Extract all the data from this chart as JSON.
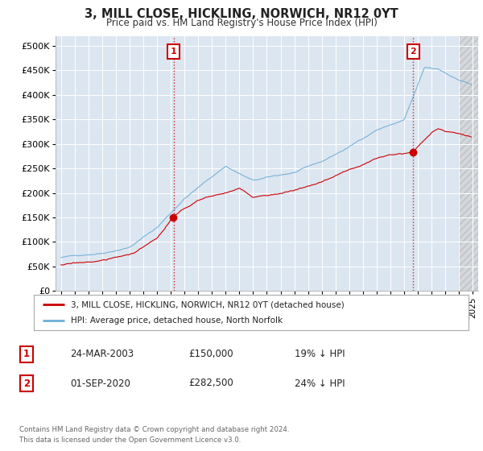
{
  "title_line1": "3, MILL CLOSE, HICKLING, NORWICH, NR12 0YT",
  "subtitle": "Price paid vs. HM Land Registry's House Price Index (HPI)",
  "ytick_values": [
    0,
    50000,
    100000,
    150000,
    200000,
    250000,
    300000,
    350000,
    400000,
    450000,
    500000
  ],
  "ylim": [
    0,
    520000
  ],
  "xlim_start": 1994.6,
  "xlim_end": 2025.4,
  "sale1_x": 2003.2,
  "sale1_price": 150000,
  "sale2_x": 2020.67,
  "sale2_price": 282500,
  "hpi_color": "#6baed6",
  "price_color": "#cc0000",
  "plot_bg_color": "#dce6f1",
  "grid_color": "#ffffff",
  "legend_label_price": "3, MILL CLOSE, HICKLING, NORWICH, NR12 0YT (detached house)",
  "legend_label_hpi": "HPI: Average price, detached house, North Norfolk",
  "table_row1_num": "1",
  "table_row1_date": "24-MAR-2003",
  "table_row1_price": "£150,000",
  "table_row1_hpi": "19% ↓ HPI",
  "table_row2_num": "2",
  "table_row2_date": "01-SEP-2020",
  "table_row2_price": "£282,500",
  "table_row2_hpi": "24% ↓ HPI",
  "footer": "Contains HM Land Registry data © Crown copyright and database right 2024.\nThis data is licensed under the Open Government Licence v3.0.",
  "box_color": "#cc0000",
  "hatch_start": 2024.0,
  "hatch_end": 2025.4
}
